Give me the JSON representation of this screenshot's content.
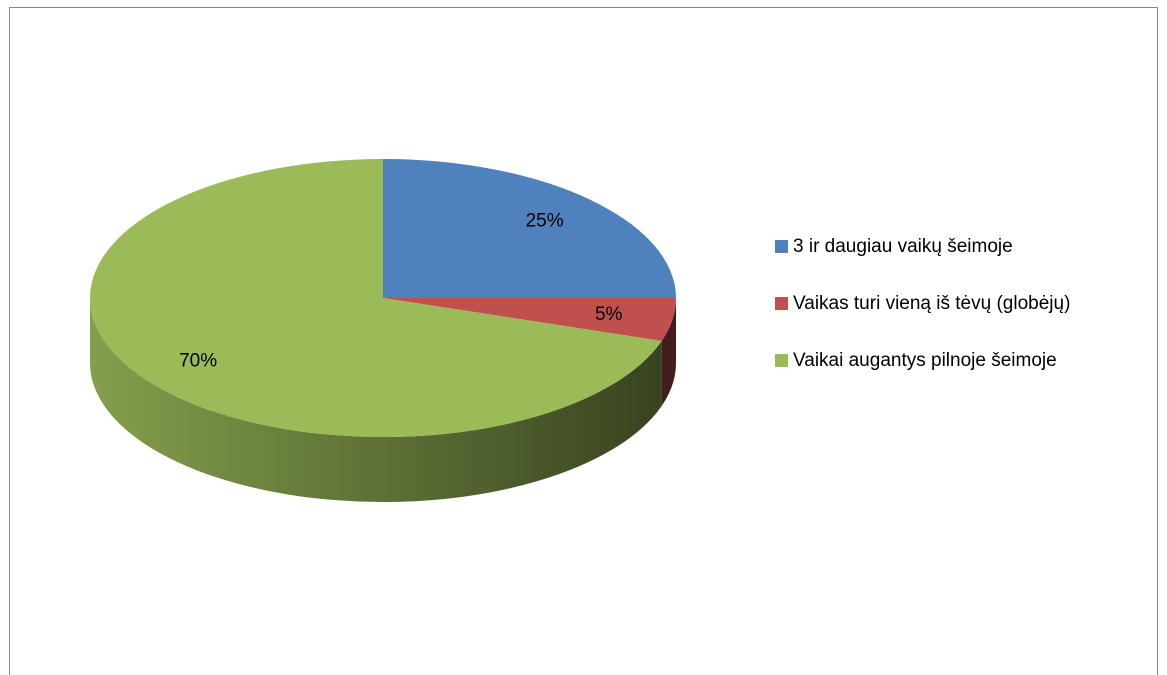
{
  "chart_data": {
    "type": "pie",
    "categories": [
      "3 ir daugiau vaikų šeimoje",
      "Vaikas turi vieną iš tėvų (globėjų)",
      "Vaikai augantys pilnoje šeimoje"
    ],
    "values": [
      25,
      5,
      70
    ],
    "value_labels": [
      "25%",
      "5%",
      "70%"
    ],
    "colors": [
      "#4f81bd",
      "#c0504d",
      "#9bbb59"
    ],
    "legend": "right"
  }
}
